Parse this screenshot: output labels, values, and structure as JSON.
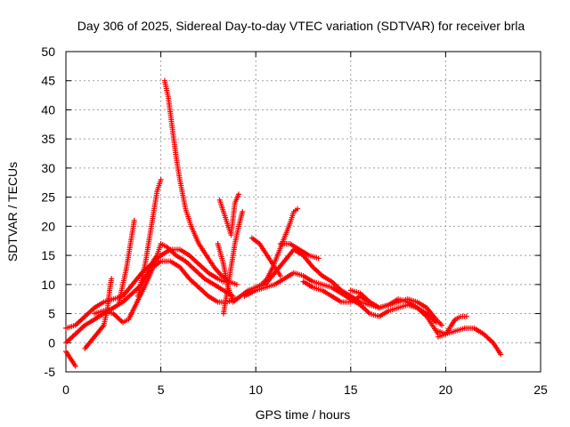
{
  "chart_data": {
    "type": "scatter",
    "title": "Day 306 of 2025, Sidereal Day-to-day VTEC variation (SDTVAR) for receiver brla",
    "xlabel": "GPS time / hours",
    "ylabel": "SDTVAR / TECUs",
    "xlim": [
      0,
      25
    ],
    "ylim": [
      -5,
      50
    ],
    "xticks": [
      "0",
      "5",
      "10",
      "15",
      "20",
      "25"
    ],
    "yticks": [
      "-5",
      "0",
      "5",
      "10",
      "15",
      "20",
      "25",
      "30",
      "35",
      "40",
      "45",
      "50"
    ],
    "grid": true,
    "marker": "+",
    "color": "#ff0000",
    "series": [
      {
        "name": "arc-1",
        "points": [
          [
            0,
            -1.5
          ],
          [
            0.2,
            -2.5
          ],
          [
            0.4,
            -3.5
          ],
          [
            0.5,
            -4
          ]
        ]
      },
      {
        "name": "arc-2",
        "points": [
          [
            0,
            2.5
          ],
          [
            0.5,
            3
          ],
          [
            1,
            4.5
          ],
          [
            1.5,
            6
          ],
          [
            2,
            7
          ],
          [
            2.5,
            7.5
          ],
          [
            3,
            8
          ],
          [
            3.5,
            10
          ],
          [
            4,
            12
          ],
          [
            4.5,
            13.5
          ],
          [
            5,
            15
          ],
          [
            5.5,
            16
          ],
          [
            6,
            16
          ],
          [
            6.5,
            15
          ],
          [
            7,
            13.5
          ],
          [
            7.5,
            12
          ],
          [
            8,
            11
          ],
          [
            8.3,
            10.5
          ]
        ]
      },
      {
        "name": "arc-3",
        "points": [
          [
            0,
            0
          ],
          [
            0.5,
            1.5
          ],
          [
            1,
            3
          ],
          [
            1.5,
            4
          ],
          [
            2,
            5
          ],
          [
            2.5,
            6
          ],
          [
            3,
            7
          ],
          [
            3.5,
            8.5
          ],
          [
            4,
            10
          ],
          [
            4.3,
            12
          ],
          [
            4.6,
            14
          ],
          [
            4.8,
            15
          ],
          [
            5,
            17
          ],
          [
            5.3,
            16.5
          ],
          [
            5.8,
            15
          ],
          [
            6.3,
            14
          ],
          [
            6.8,
            12.5
          ],
          [
            7.3,
            11
          ],
          [
            7.8,
            10
          ],
          [
            8.3,
            9
          ],
          [
            8.8,
            8
          ]
        ]
      },
      {
        "name": "arc-4",
        "points": [
          [
            1,
            -1
          ],
          [
            1.5,
            1
          ],
          [
            2,
            3
          ],
          [
            2.2,
            6
          ],
          [
            2.3,
            9
          ],
          [
            2.4,
            11
          ]
        ]
      },
      {
        "name": "arc-5",
        "points": [
          [
            1.5,
            5
          ],
          [
            2,
            5.5
          ],
          [
            2.5,
            5
          ],
          [
            3,
            3.5
          ],
          [
            3.3,
            4
          ],
          [
            3.6,
            6
          ],
          [
            3.9,
            8
          ],
          [
            4.2,
            10
          ],
          [
            4.6,
            13
          ],
          [
            5,
            14
          ],
          [
            5.5,
            14
          ],
          [
            6,
            13
          ],
          [
            6.5,
            11
          ],
          [
            7,
            9.5
          ],
          [
            7.5,
            8
          ],
          [
            8,
            7
          ],
          [
            8.5,
            7
          ],
          [
            9,
            7.5
          ]
        ]
      },
      {
        "name": "arc-6",
        "points": [
          [
            2.8,
            7
          ],
          [
            3,
            10
          ],
          [
            3.2,
            13
          ],
          [
            3.4,
            17
          ],
          [
            3.6,
            21
          ]
        ]
      },
      {
        "name": "arc-7",
        "points": [
          [
            3.8,
            8
          ],
          [
            4.0,
            11
          ],
          [
            4.2,
            14
          ],
          [
            4.4,
            18
          ],
          [
            4.6,
            22
          ],
          [
            4.8,
            26
          ],
          [
            5.0,
            28
          ]
        ]
      },
      {
        "name": "arc-8",
        "points": [
          [
            5.2,
            45
          ],
          [
            5.4,
            42
          ],
          [
            5.6,
            37
          ],
          [
            5.8,
            32
          ],
          [
            6,
            28
          ],
          [
            6.3,
            23
          ],
          [
            6.6,
            20
          ],
          [
            7,
            17
          ],
          [
            7.4,
            15
          ],
          [
            7.8,
            13
          ],
          [
            8.2,
            11.5
          ],
          [
            8.6,
            10.5
          ],
          [
            9,
            10
          ]
        ]
      },
      {
        "name": "arc-9",
        "points": [
          [
            8,
            17
          ],
          [
            8.3,
            13.5
          ],
          [
            8.5,
            10
          ],
          [
            8.8,
            7
          ],
          [
            9.2,
            8
          ],
          [
            9.6,
            9
          ],
          [
            10,
            9.5
          ],
          [
            10.5,
            10
          ],
          [
            11,
            12
          ],
          [
            11.5,
            14
          ],
          [
            12,
            16
          ],
          [
            12.5,
            15
          ],
          [
            13,
            13
          ],
          [
            13.5,
            11.5
          ],
          [
            14,
            10.5
          ],
          [
            14.5,
            9
          ],
          [
            15,
            8
          ],
          [
            15.5,
            7
          ],
          [
            16,
            6.5
          ],
          [
            16.5,
            6
          ]
        ]
      },
      {
        "name": "arc-10",
        "points": [
          [
            8.3,
            5
          ],
          [
            8.5,
            9
          ],
          [
            8.7,
            13
          ],
          [
            8.9,
            17
          ],
          [
            9.1,
            20
          ],
          [
            9.3,
            22.5
          ]
        ]
      },
      {
        "name": "arc-11",
        "points": [
          [
            8.1,
            24.5
          ],
          [
            8.4,
            21.5
          ],
          [
            8.7,
            18.5
          ],
          [
            8.9,
            24
          ],
          [
            9.1,
            25.5
          ]
        ]
      },
      {
        "name": "arc-12",
        "points": [
          [
            9.4,
            8
          ],
          [
            10,
            9
          ],
          [
            10.5,
            9.5
          ],
          [
            11,
            10
          ],
          [
            11.5,
            11
          ],
          [
            12,
            12
          ],
          [
            12.5,
            11.5
          ],
          [
            13,
            10.5
          ],
          [
            13.5,
            10
          ],
          [
            14,
            9.5
          ],
          [
            14.5,
            8.5
          ],
          [
            15,
            7.5
          ],
          [
            15.5,
            6.5
          ],
          [
            16,
            5
          ],
          [
            16.5,
            4.5
          ],
          [
            17,
            5.5
          ],
          [
            17.5,
            6
          ],
          [
            18,
            6.5
          ],
          [
            18.5,
            6
          ],
          [
            19,
            4.5
          ],
          [
            19.3,
            3
          ],
          [
            19.6,
            1.5
          ]
        ]
      },
      {
        "name": "arc-13",
        "points": [
          [
            10,
            9.5
          ],
          [
            10.3,
            10
          ],
          [
            10.6,
            11
          ],
          [
            10.9,
            13
          ],
          [
            11.2,
            15.5
          ],
          [
            11.5,
            18
          ],
          [
            11.8,
            20.5
          ],
          [
            12,
            22.5
          ],
          [
            12.2,
            23
          ]
        ]
      },
      {
        "name": "arc-14",
        "points": [
          [
            9.8,
            18
          ],
          [
            10.2,
            17
          ],
          [
            10.6,
            15
          ],
          [
            11,
            13
          ],
          [
            11.3,
            11.5
          ]
        ]
      },
      {
        "name": "arc-15",
        "points": [
          [
            11.3,
            17
          ],
          [
            11.8,
            17
          ],
          [
            12.3,
            16
          ],
          [
            12.8,
            15
          ],
          [
            13.3,
            14.5
          ]
        ]
      },
      {
        "name": "arc-16",
        "points": [
          [
            12.5,
            10.5
          ],
          [
            13,
            9.5
          ],
          [
            13.5,
            9
          ],
          [
            14,
            8
          ],
          [
            14.5,
            7
          ],
          [
            15,
            7
          ],
          [
            15.5,
            8
          ],
          [
            16,
            7
          ],
          [
            16.5,
            6
          ],
          [
            17,
            6.5
          ],
          [
            17.5,
            7
          ],
          [
            18,
            7.5
          ],
          [
            18.5,
            7
          ],
          [
            19,
            6
          ],
          [
            19.5,
            4
          ],
          [
            19.8,
            3
          ]
        ]
      },
      {
        "name": "arc-17",
        "points": [
          [
            15,
            9
          ],
          [
            15.5,
            8.5
          ],
          [
            16,
            7
          ],
          [
            16.5,
            6
          ],
          [
            17,
            6.5
          ],
          [
            17.5,
            7.5
          ],
          [
            18,
            7
          ],
          [
            18.5,
            6
          ],
          [
            19,
            5
          ],
          [
            19.5,
            3.5
          ]
        ]
      },
      {
        "name": "arc-18",
        "points": [
          [
            19.6,
            1
          ],
          [
            20,
            1.5
          ],
          [
            20.3,
            3
          ],
          [
            20.5,
            4
          ],
          [
            20.8,
            4.5
          ],
          [
            21.1,
            4.5
          ]
        ]
      },
      {
        "name": "arc-19",
        "points": [
          [
            19.6,
            2
          ],
          [
            20,
            1.5
          ],
          [
            20.5,
            2
          ],
          [
            21,
            2.5
          ],
          [
            21.5,
            2.5
          ],
          [
            22,
            1.5
          ],
          [
            22.5,
            0
          ],
          [
            22.9,
            -2
          ]
        ]
      }
    ]
  }
}
